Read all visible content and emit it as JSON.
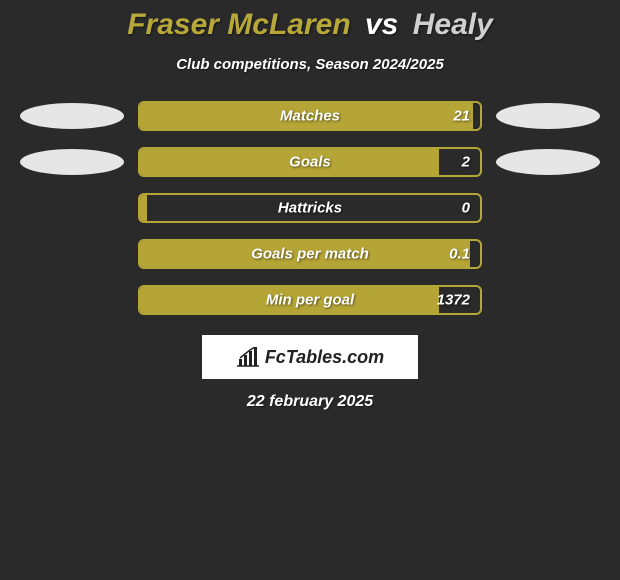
{
  "title": {
    "player1": "Fraser McLaren",
    "vs": "vs",
    "player2": "Healy",
    "player1_color": "#b8a83a",
    "player2_color": "#d0d0d0"
  },
  "subtitle": "Club competitions, Season 2024/2025",
  "background_color": "#2a2a2a",
  "bar_color": "#b5a436",
  "bar_border_color": "#b5a436",
  "ellipse_color": "#e6e6e6",
  "rows": [
    {
      "label": "Matches",
      "value": "21",
      "fill_pct": 98,
      "show_ellipses": true
    },
    {
      "label": "Goals",
      "value": "2",
      "fill_pct": 88,
      "show_ellipses": true
    },
    {
      "label": "Hattricks",
      "value": "0",
      "fill_pct": 2,
      "show_ellipses": false
    },
    {
      "label": "Goals per match",
      "value": "0.1",
      "fill_pct": 97,
      "show_ellipses": false
    },
    {
      "label": "Min per goal",
      "value": "1372",
      "fill_pct": 88,
      "show_ellipses": false
    }
  ],
  "logo_text": "FcTables.com",
  "date": "22 february 2025"
}
